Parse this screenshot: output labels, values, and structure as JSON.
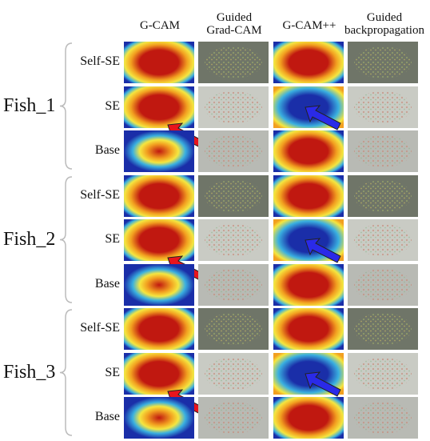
{
  "headers": {
    "gcam": "G-CAM",
    "guided_gradcam": "Guided\nGrad-CAM",
    "gcampp": "G-CAM++",
    "guided_backprop": "Guided\nbackpropagation"
  },
  "groups": [
    {
      "label": "Fish_1",
      "rows": [
        "Self-SE",
        "SE",
        "Base"
      ]
    },
    {
      "label": "Fish_2",
      "rows": [
        "Self-SE",
        "SE",
        "Base"
      ]
    },
    {
      "label": "Fish_3",
      "rows": [
        "Self-SE",
        "SE",
        "Base"
      ]
    }
  ],
  "colors": {
    "heat_hot": "#c01810",
    "heat_warm": "#f2a020",
    "heat_mid": "#f5e640",
    "heat_cool": "#3ab0e0",
    "heat_cold": "#1a2ea8",
    "arrow_red": "#e8141c",
    "arrow_blue": "#2a2ae8"
  }
}
